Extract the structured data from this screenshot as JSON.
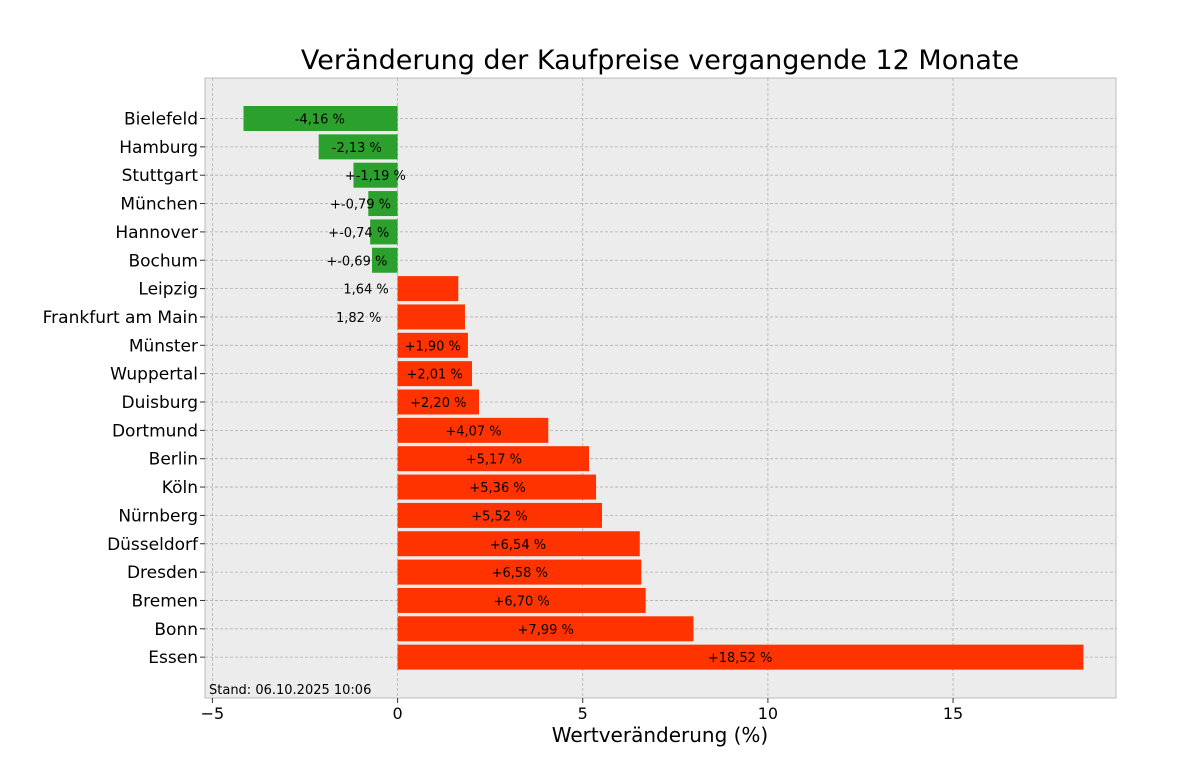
{
  "chart_data": {
    "type": "bar",
    "orientation": "horizontal",
    "title": "Veränderung der Kaufpreise vergangende 12 Monate",
    "xlabel": "Wertveränderung (%)",
    "ylabel": "",
    "xlim": [
      -5.2,
      19.4
    ],
    "xticks": [
      -5,
      0,
      5,
      10,
      15
    ],
    "xtick_labels": [
      "−5",
      "0",
      "5",
      "10",
      "15"
    ],
    "grid": true,
    "colors": {
      "negative": "#2ca02c",
      "positive": "#ff3300",
      "plot_background": "#ececec",
      "grid": "#b0b0b0"
    },
    "footnote": "Stand: 06.10.2025 10:06",
    "categories": [
      "Bielefeld",
      "Hamburg",
      "Stuttgart",
      "München",
      "Hannover",
      "Bochum",
      "Leipzig",
      "Frankfurt am Main",
      "Münster",
      "Wuppertal",
      "Duisburg",
      "Dortmund",
      "Berlin",
      "Köln",
      "Nürnberg",
      "Düsseldorf",
      "Dresden",
      "Bremen",
      "Bonn",
      "Essen"
    ],
    "values": [
      -4.16,
      -2.13,
      -1.19,
      -0.79,
      -0.74,
      -0.69,
      1.64,
      1.82,
      1.9,
      2.01,
      2.2,
      4.07,
      5.17,
      5.36,
      5.52,
      6.54,
      6.58,
      6.7,
      7.99,
      18.52
    ],
    "data_labels": [
      "-4,16 %",
      "-2,13 %",
      "+-1,19 %",
      "+-0,79 %",
      "+-0,74 %",
      "+-0,69 %",
      "1,64 %",
      "1,82 %",
      "+1,90 %",
      "+2,01 %",
      "+2,20 %",
      "+4,07 %",
      "+5,17 %",
      "+5,36 %",
      "+5,52 %",
      "+6,54 %",
      "+6,58 %",
      "+6,70 %",
      "+7,99 %",
      "+18,52 %"
    ],
    "label_x": [
      -2.1,
      -1.1,
      -0.6,
      -1.0,
      -1.05,
      -1.1,
      -0.85,
      -1.05,
      0.95,
      1.0,
      1.1,
      2.05,
      2.6,
      2.7,
      2.75,
      3.25,
      3.3,
      3.35,
      4.0,
      9.25
    ]
  }
}
